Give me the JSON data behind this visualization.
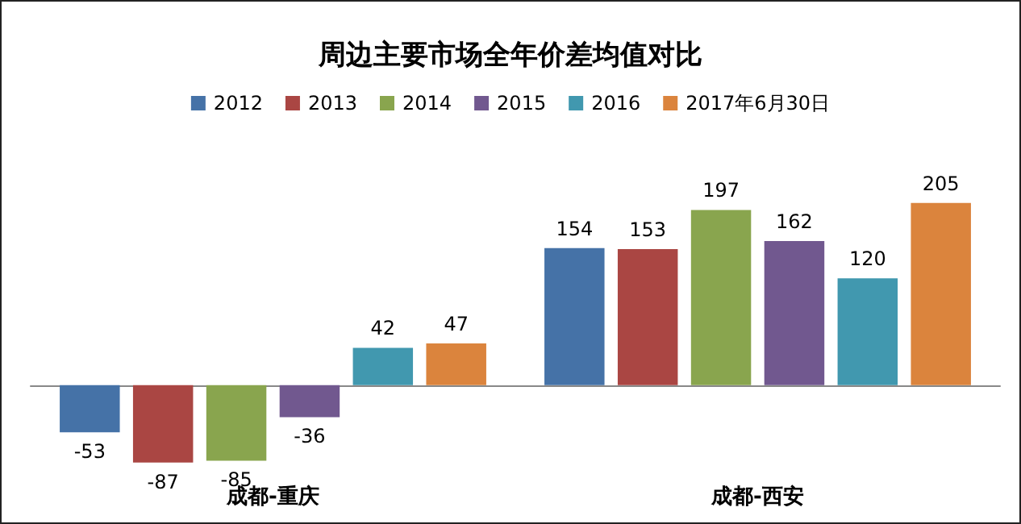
{
  "chart_data": {
    "type": "bar",
    "title": "周边主要市场全年价差均值对比",
    "categories": [
      "成都-重庆",
      "成都-西安"
    ],
    "series": [
      {
        "name": "2012",
        "color": "#4572a7",
        "values": [
          -53,
          154
        ]
      },
      {
        "name": "2013",
        "color": "#aa4643",
        "values": [
          -87,
          153
        ]
      },
      {
        "name": "2014",
        "color": "#89a54e",
        "values": [
          -85,
          197
        ]
      },
      {
        "name": "2015",
        "color": "#71588f",
        "values": [
          -36,
          162
        ]
      },
      {
        "name": "2016",
        "color": "#4198af",
        "values": [
          42,
          120
        ]
      },
      {
        "name": "2017年6月30日",
        "color": "#db843d",
        "values": [
          47,
          205
        ]
      }
    ],
    "data_labels": true,
    "legend": "top"
  }
}
